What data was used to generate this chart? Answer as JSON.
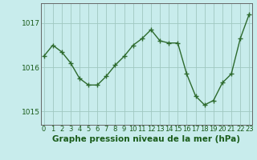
{
  "hours": [
    0,
    1,
    2,
    3,
    4,
    5,
    6,
    7,
    8,
    9,
    10,
    11,
    12,
    13,
    14,
    15,
    16,
    17,
    18,
    19,
    20,
    21,
    22,
    23
  ],
  "pressure": [
    1016.25,
    1016.5,
    1016.35,
    1016.1,
    1015.75,
    1015.6,
    1015.6,
    1015.8,
    1016.05,
    1016.25,
    1016.5,
    1016.65,
    1016.85,
    1016.6,
    1016.55,
    1016.55,
    1015.85,
    1015.35,
    1015.15,
    1015.25,
    1015.65,
    1015.85,
    1016.65,
    1017.2
  ],
  "line_color": "#2d6a2d",
  "marker": "+",
  "marker_size": 4,
  "marker_lw": 1.0,
  "line_width": 1.0,
  "bg_color": "#c8ecec",
  "grid_color": "#a0c8c0",
  "yticks": [
    1015,
    1016,
    1017
  ],
  "xlabel": "Graphe pression niveau de la mer (hPa)",
  "ylim": [
    1014.7,
    1017.45
  ],
  "xlim": [
    -0.3,
    23.3
  ],
  "text_color": "#1a5c1a",
  "tick_fontsize": 6.5,
  "xlabel_fontsize": 7.5
}
